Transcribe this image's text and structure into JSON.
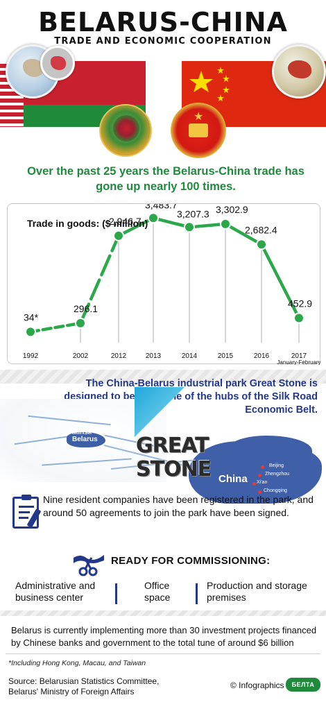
{
  "header": {
    "title": "BELARUS-CHINA",
    "subtitle": "TRADE AND ECONOMIC COOPERATION"
  },
  "lead_text": "Over the past 25 years the Belarus-China trade has gone up nearly 100 times.",
  "chart_data": {
    "type": "line",
    "title": "Trade in goods: ($ million)",
    "xlabel": "",
    "ylabel": "",
    "categories": [
      "1992",
      "2002",
      "2012",
      "2013",
      "2014",
      "2015",
      "2016",
      "2017"
    ],
    "category_note": "January-February",
    "series": [
      {
        "name": "",
        "values": [
          34,
          296.1,
          2946.7,
          3483.7,
          3207.3,
          3302.9,
          2682.4,
          452.9
        ],
        "labels": [
          "34*",
          "296.1",
          "2,946.7",
          "3,483.7",
          "3,207.3",
          "3,302.9",
          "2,682.4",
          "452.9"
        ]
      }
    ],
    "ylim": [
      0,
      3700
    ],
    "grid": false,
    "colors": {
      "line": "#2aa84a",
      "marker": "#2aa84a",
      "drop_line": "#c9c9c9"
    }
  },
  "park": {
    "text": "The China-Belarus industrial park Great Stone is designed to become one of the hubs of the Silk Road Economic Belt.",
    "logo_line1": "GREAT",
    "logo_line2": "STONE",
    "map_minsk_label_1": "Minsk",
    "map_minsk_label_2": "Belarus",
    "map_china_label": "China",
    "cities": [
      "Beijing",
      "Zhengzhou",
      "Xi'an",
      "Chongqing"
    ]
  },
  "companies_text": "Nine resident companies have been registered in the park, and around 50 agreements to join the park have been signed.",
  "commissioning": {
    "title": "READY FOR COMMISSIONING:",
    "items": [
      "Administrative and business center",
      "Office space",
      "Production and storage premises"
    ]
  },
  "investment_text": "Belarus is currently implementing more than 30 investment projects financed by Chinese banks and government to the total tune of around $6 billion",
  "footnote": "*Including Hong Kong, Macau, and Taiwan",
  "source_line1": "Source: Belarusian Statistics Committee,",
  "source_line2": "Belarus' Ministry of Foreign Affairs",
  "credit": "© Infographics",
  "agency_logo": "БЕЛТА",
  "colors": {
    "green": "#1f8a3c",
    "blue": "#23388a",
    "belarus_red": "#c8202f",
    "china_red": "#de2910"
  }
}
